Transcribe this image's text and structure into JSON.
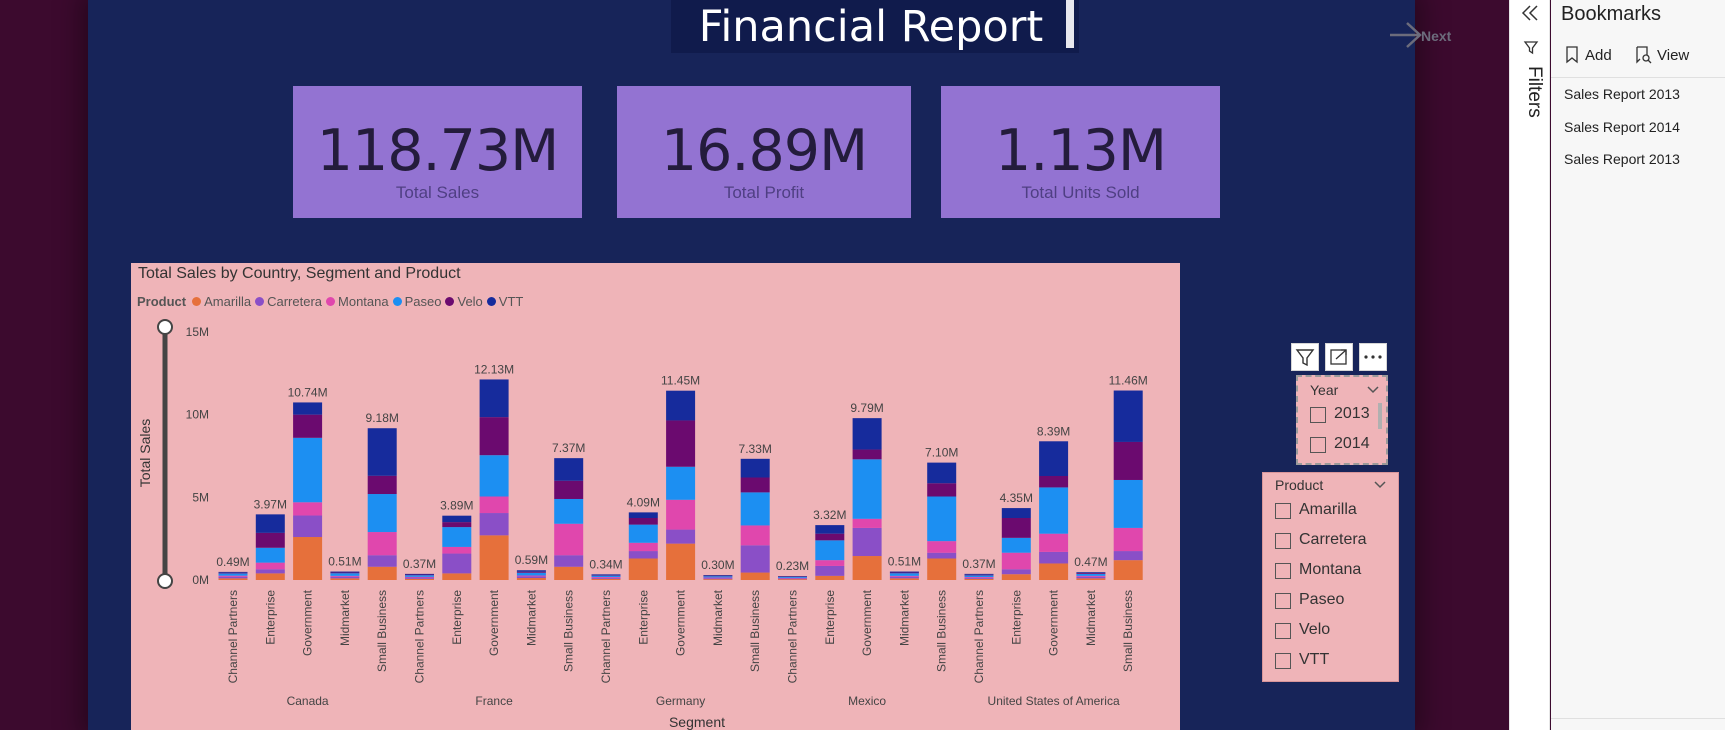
{
  "report": {
    "title": "Financial Report",
    "next_label": "Next"
  },
  "cards": [
    {
      "value": "118.73M",
      "label": "Total Sales"
    },
    {
      "value": "16.89M",
      "label": "Total Profit"
    },
    {
      "value": "1.13M",
      "label": "Total Units Sold"
    }
  ],
  "chart_data": {
    "type": "bar",
    "stacked": true,
    "title": "Total Sales by Country, Segment and Product",
    "legend_title": "Product",
    "xlabel": "Segment",
    "ylabel": "Total Sales",
    "ylim": [
      0,
      15
    ],
    "yticks": [
      "0M",
      "5M",
      "10M",
      "15M"
    ],
    "grid": false,
    "legend_position": "top-left",
    "groups": [
      "Canada",
      "France",
      "Germany",
      "Mexico",
      "United States of America"
    ],
    "categories": [
      "Channel Partners",
      "Enterprise",
      "Government",
      "Midmarket",
      "Small Business",
      "Channel Partners",
      "Enterprise",
      "Government",
      "Midmarket",
      "Small Business",
      "Channel Partners",
      "Enterprise",
      "Government",
      "Midmarket",
      "Small Business",
      "Channel Partners",
      "Enterprise",
      "Government",
      "Midmarket",
      "Small Business",
      "Channel Partners",
      "Enterprise",
      "Government",
      "Midmarket",
      "Small Business"
    ],
    "totals_label": [
      "0.49M",
      "3.97M",
      "10.74M",
      "0.51M",
      "9.18M",
      "0.37M",
      "3.89M",
      "12.13M",
      "0.59M",
      "7.37M",
      "0.34M",
      "4.09M",
      "11.45M",
      "0.30M",
      "7.33M",
      "0.23M",
      "3.32M",
      "9.79M",
      "0.51M",
      "7.10M",
      "0.37M",
      "4.35M",
      "8.39M",
      "0.47M",
      "11.46M"
    ],
    "series": [
      {
        "name": "Amarilla",
        "color": "#e6703b",
        "values": [
          0.1,
          0.4,
          2.6,
          0.1,
          0.8,
          0.07,
          0.4,
          2.7,
          0.12,
          0.8,
          0.07,
          1.3,
          2.2,
          0.05,
          0.45,
          0.05,
          0.25,
          1.45,
          0.1,
          1.3,
          0.07,
          0.35,
          1.0,
          0.1,
          1.2
        ]
      },
      {
        "name": "Carretera",
        "color": "#8a4fc7",
        "values": [
          0.1,
          0.25,
          1.3,
          0.1,
          0.7,
          0.08,
          1.2,
          1.35,
          0.1,
          0.7,
          0.07,
          0.45,
          0.85,
          0.06,
          1.65,
          0.05,
          0.6,
          1.7,
          0.1,
          0.35,
          0.07,
          0.3,
          0.7,
          0.1,
          0.55
        ]
      },
      {
        "name": "Montana",
        "color": "#e047ad",
        "values": [
          0.06,
          0.4,
          0.8,
          0.05,
          1.4,
          0.04,
          0.4,
          1.0,
          0.05,
          1.9,
          0.04,
          0.5,
          1.8,
          0.04,
          1.2,
          0.03,
          0.35,
          0.55,
          0.05,
          0.7,
          0.04,
          1.0,
          1.1,
          0.05,
          1.4
        ]
      },
      {
        "name": "Paseo",
        "color": "#1c8ff2",
        "values": [
          0.14,
          0.9,
          3.9,
          0.16,
          2.3,
          0.1,
          1.2,
          2.5,
          0.17,
          1.5,
          0.09,
          1.1,
          2.0,
          0.08,
          2.0,
          0.06,
          1.2,
          3.6,
          0.16,
          2.7,
          0.1,
          0.9,
          2.8,
          0.12,
          2.9
        ]
      },
      {
        "name": "Velo",
        "color": "#6b0a6f",
        "values": [
          0.04,
          0.9,
          1.4,
          0.04,
          1.1,
          0.04,
          0.3,
          2.3,
          0.06,
          1.1,
          0.03,
          0.4,
          2.8,
          0.03,
          0.9,
          0.02,
          0.4,
          0.59,
          0.04,
          0.8,
          0.04,
          1.2,
          0.69,
          0.05,
          2.3
        ]
      },
      {
        "name": "VTT",
        "color": "#162b9c",
        "values": [
          0.05,
          1.12,
          0.74,
          0.06,
          2.88,
          0.04,
          0.39,
          2.28,
          0.09,
          1.37,
          0.04,
          0.34,
          1.8,
          0.04,
          1.13,
          0.02,
          0.52,
          1.9,
          0.06,
          1.25,
          0.05,
          0.6,
          2.1,
          0.05,
          3.11
        ]
      }
    ]
  },
  "toolbar_icons": {
    "filter": "filter-icon",
    "focus": "focus-mode-icon",
    "more": "more-options-icon"
  },
  "year_slicer": {
    "title": "Year",
    "options": [
      "2013",
      "2014"
    ]
  },
  "product_slicer": {
    "title": "Product",
    "options": [
      "Amarilla",
      "Carretera",
      "Montana",
      "Paseo",
      "Velo",
      "VTT"
    ]
  },
  "filters_pane": {
    "label": "Filters"
  },
  "bookmarks_pane": {
    "title": "Bookmarks",
    "add_label": "Add",
    "view_label": "View",
    "items": [
      "Sales Report 2013",
      "Sales Report 2014",
      "Sales Report 2013"
    ]
  },
  "colors": {
    "canvas_bg": "#172459",
    "card_bg": "#9373d2",
    "chart_bg": "#efb4b8",
    "outer_bg": "#3c0a2e"
  }
}
